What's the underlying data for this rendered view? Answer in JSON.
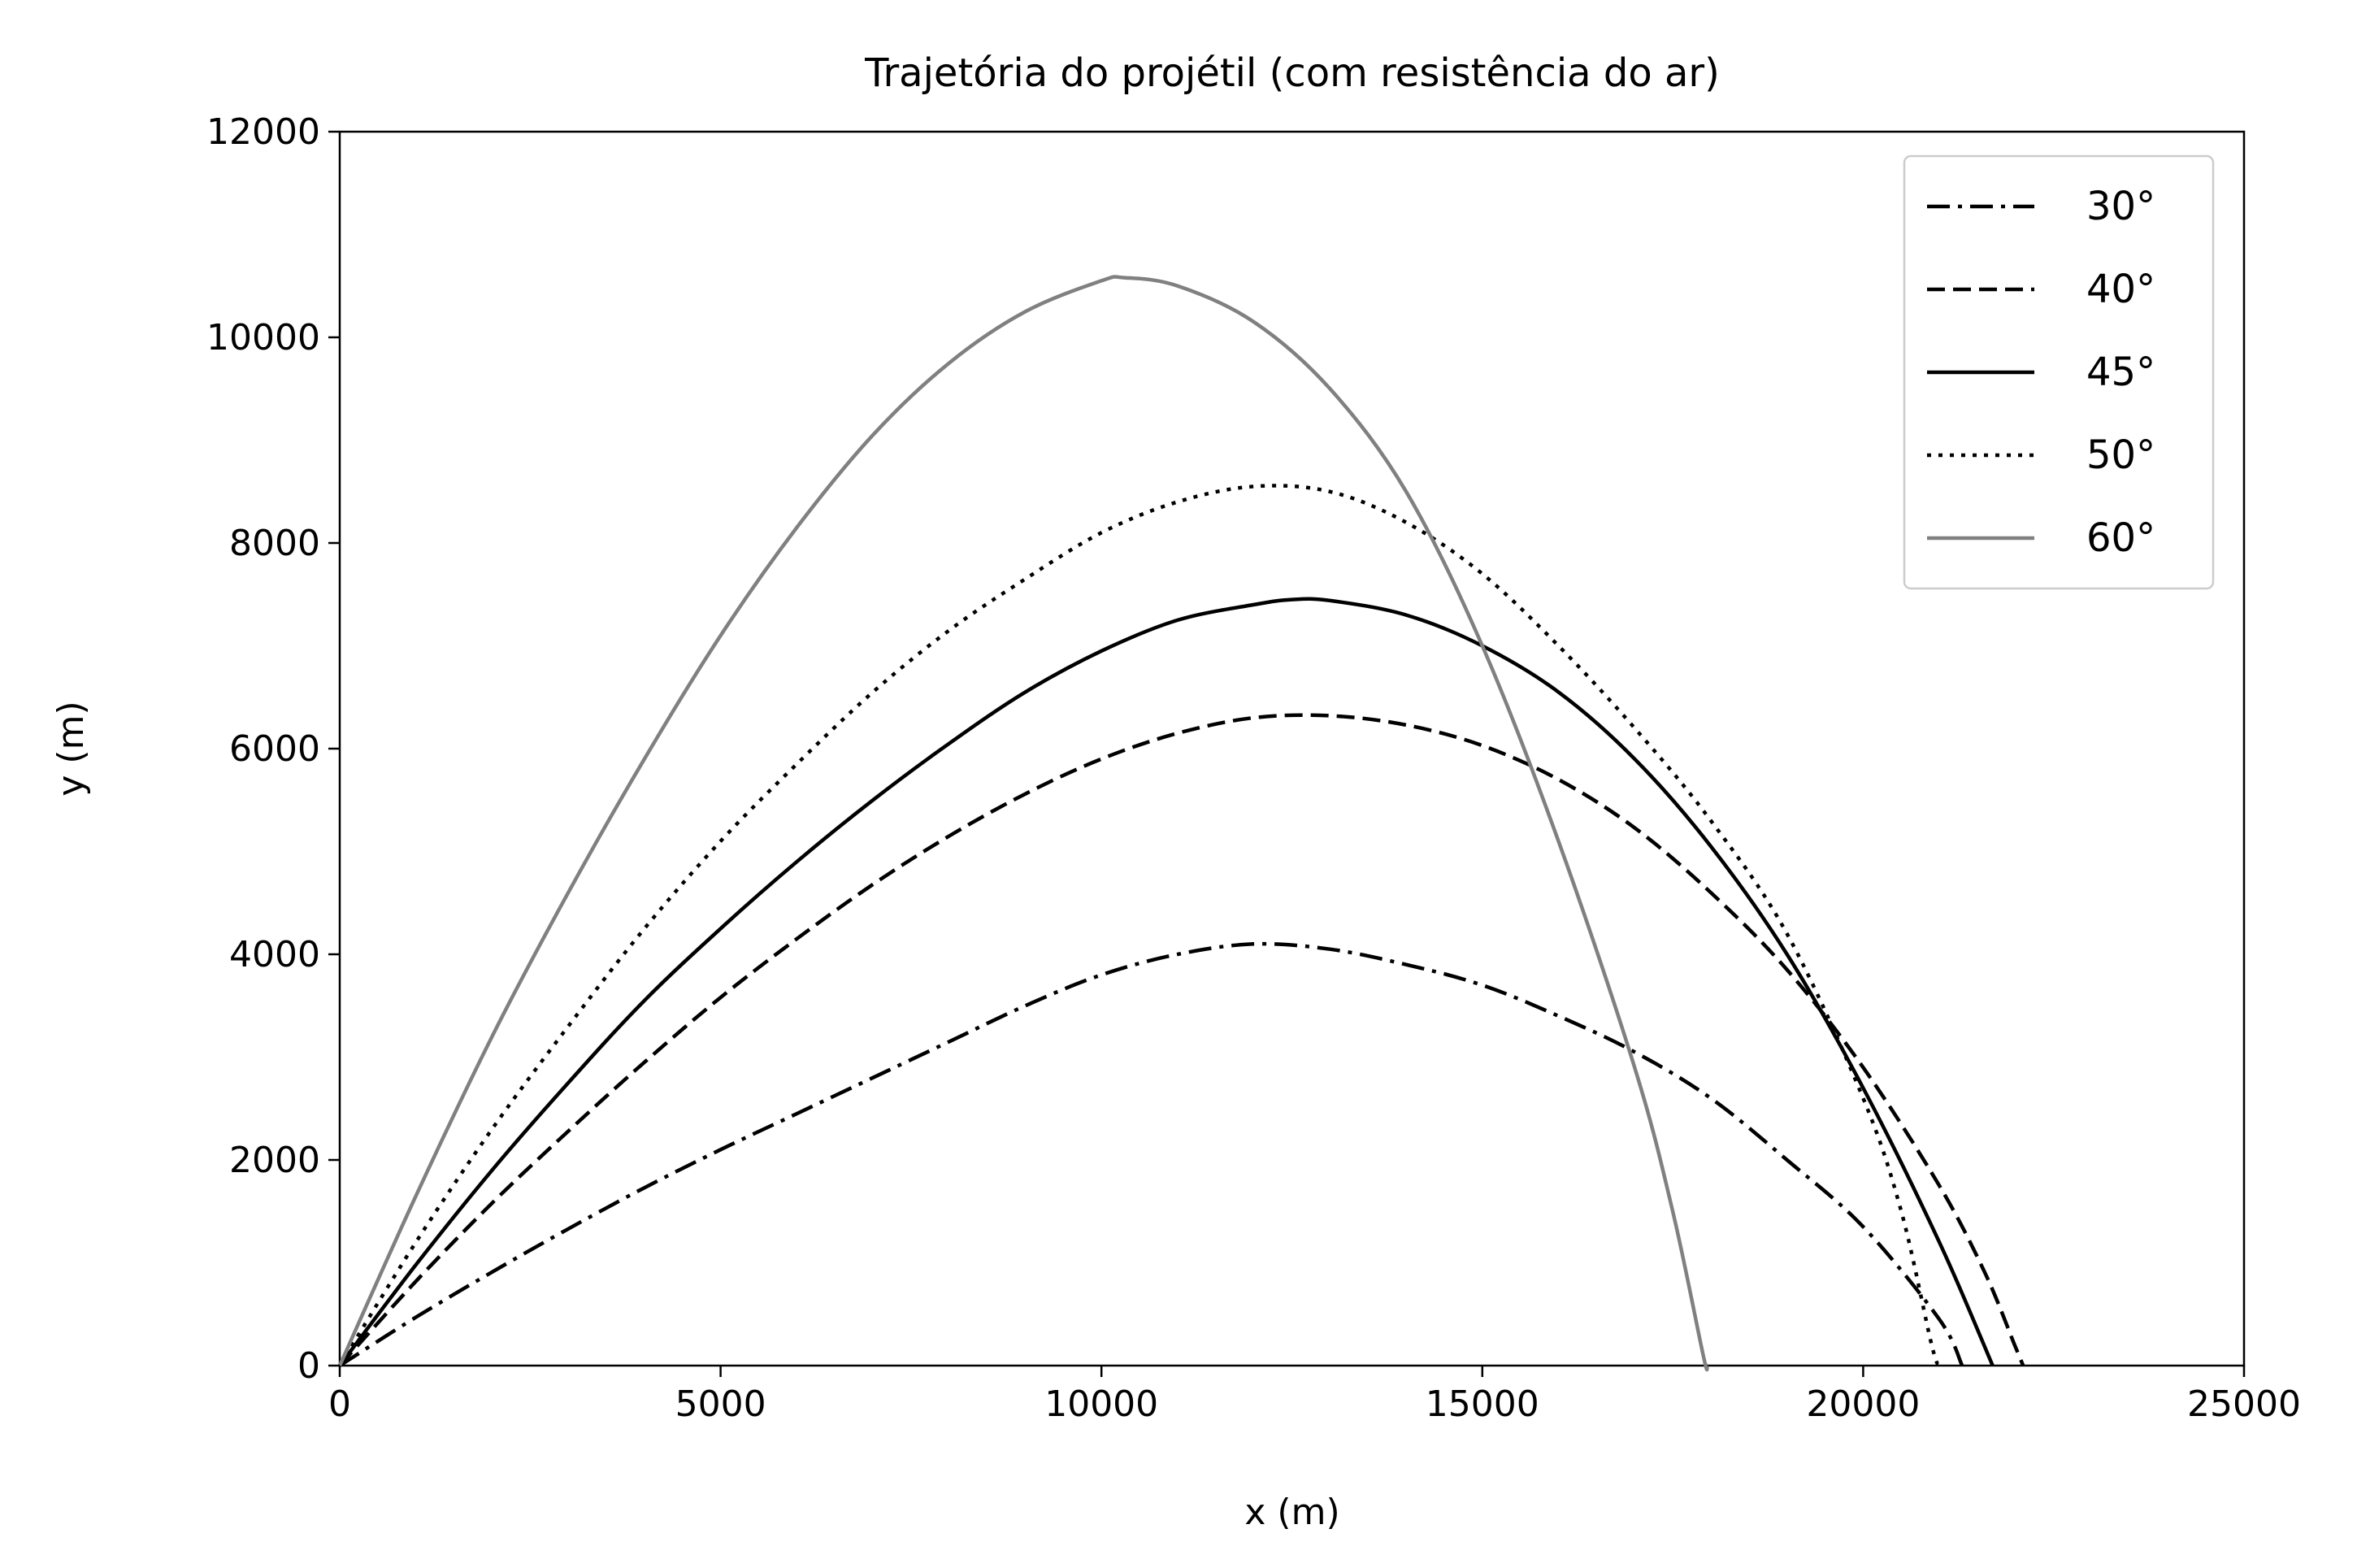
{
  "chart_data": {
    "type": "line",
    "title": "Trajetória do projétil (com resistência do ar)",
    "xlabel": "x (m)",
    "ylabel": "y (m)",
    "xlim": [
      0,
      25000
    ],
    "ylim": [
      0,
      12000
    ],
    "xticks": [
      0,
      5000,
      10000,
      15000,
      20000,
      25000
    ],
    "yticks": [
      0,
      2000,
      4000,
      6000,
      8000,
      10000,
      12000
    ],
    "grid": false,
    "legend_position": "top-right",
    "series": [
      {
        "name": "30°",
        "color": "#000000",
        "style": "dashdot",
        "points": [
          [
            0,
            0
          ],
          [
            1000,
            470
          ],
          [
            2000,
            910
          ],
          [
            3000,
            1330
          ],
          [
            4000,
            1730
          ],
          [
            5000,
            2100
          ],
          [
            6000,
            2450
          ],
          [
            7000,
            2800
          ],
          [
            8000,
            3150
          ],
          [
            9000,
            3500
          ],
          [
            10000,
            3800
          ],
          [
            11000,
            4000
          ],
          [
            12000,
            4100
          ],
          [
            13000,
            4050
          ],
          [
            14000,
            3900
          ],
          [
            15000,
            3700
          ],
          [
            16000,
            3400
          ],
          [
            17000,
            3050
          ],
          [
            18000,
            2600
          ],
          [
            19000,
            2000
          ],
          [
            20000,
            1350
          ],
          [
            21000,
            450
          ],
          [
            21300,
            0
          ]
        ]
      },
      {
        "name": "40°",
        "color": "#000000",
        "style": "dashed",
        "points": [
          [
            0,
            0
          ],
          [
            1000,
            820
          ],
          [
            2000,
            1580
          ],
          [
            3000,
            2280
          ],
          [
            4000,
            2950
          ],
          [
            5000,
            3580
          ],
          [
            6000,
            4150
          ],
          [
            7000,
            4680
          ],
          [
            8000,
            5150
          ],
          [
            9000,
            5560
          ],
          [
            10000,
            5900
          ],
          [
            11000,
            6150
          ],
          [
            12000,
            6300
          ],
          [
            13000,
            6320
          ],
          [
            14000,
            6230
          ],
          [
            15000,
            6030
          ],
          [
            16000,
            5700
          ],
          [
            17000,
            5230
          ],
          [
            18000,
            4600
          ],
          [
            19000,
            3850
          ],
          [
            20000,
            2900
          ],
          [
            21000,
            1750
          ],
          [
            21600,
            900
          ],
          [
            22000,
            180
          ],
          [
            22100,
            0
          ]
        ]
      },
      {
        "name": "45°",
        "color": "#000000",
        "style": "solid",
        "points": [
          [
            0,
            0
          ],
          [
            1000,
            980
          ],
          [
            2000,
            1900
          ],
          [
            3000,
            2750
          ],
          [
            4000,
            3550
          ],
          [
            5000,
            4250
          ],
          [
            6000,
            4900
          ],
          [
            7000,
            5500
          ],
          [
            8000,
            6050
          ],
          [
            9000,
            6550
          ],
          [
            10000,
            6950
          ],
          [
            11000,
            7250
          ],
          [
            12000,
            7400
          ],
          [
            12500,
            7450
          ],
          [
            13000,
            7440
          ],
          [
            14000,
            7300
          ],
          [
            15000,
            7000
          ],
          [
            16000,
            6550
          ],
          [
            17000,
            5900
          ],
          [
            18000,
            5050
          ],
          [
            19000,
            4000
          ],
          [
            20000,
            2700
          ],
          [
            21000,
            1200
          ],
          [
            21700,
            0
          ]
        ]
      },
      {
        "name": "50°",
        "color": "#000000",
        "style": "dotted",
        "points": [
          [
            0,
            0
          ],
          [
            1000,
            1200
          ],
          [
            2000,
            2300
          ],
          [
            3000,
            3300
          ],
          [
            4000,
            4250
          ],
          [
            5000,
            5100
          ],
          [
            6000,
            5850
          ],
          [
            7000,
            6550
          ],
          [
            8000,
            7150
          ],
          [
            9000,
            7650
          ],
          [
            10000,
            8100
          ],
          [
            11000,
            8400
          ],
          [
            12000,
            8550
          ],
          [
            13000,
            8500
          ],
          [
            14000,
            8200
          ],
          [
            15000,
            7700
          ],
          [
            16000,
            7000
          ],
          [
            17000,
            6200
          ],
          [
            18000,
            5300
          ],
          [
            19000,
            4200
          ],
          [
            20000,
            2600
          ],
          [
            20500,
            1500
          ],
          [
            20900,
            200
          ],
          [
            21000,
            0
          ]
        ]
      },
      {
        "name": "60°",
        "color": "#808080",
        "style": "solid",
        "points": [
          [
            0,
            0
          ],
          [
            1000,
            1650
          ],
          [
            2000,
            3200
          ],
          [
            3000,
            4600
          ],
          [
            4000,
            5900
          ],
          [
            5000,
            7100
          ],
          [
            6000,
            8150
          ],
          [
            7000,
            9050
          ],
          [
            8000,
            9750
          ],
          [
            9000,
            10250
          ],
          [
            10000,
            10550
          ],
          [
            10300,
            10580
          ],
          [
            11000,
            10500
          ],
          [
            12000,
            10150
          ],
          [
            13000,
            9500
          ],
          [
            14000,
            8500
          ],
          [
            15000,
            7000
          ],
          [
            16000,
            5100
          ],
          [
            17000,
            2900
          ],
          [
            17500,
            1500
          ],
          [
            17900,
            100
          ],
          [
            17950,
            0
          ]
        ]
      }
    ]
  }
}
